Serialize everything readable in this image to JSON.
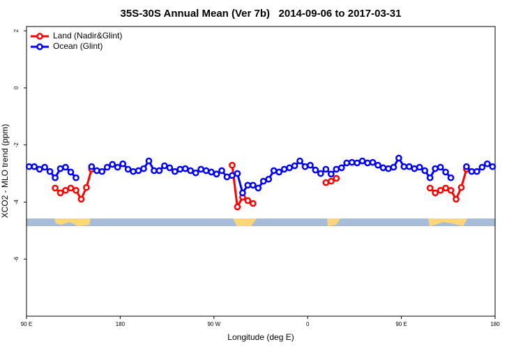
{
  "chart_data": {
    "type": "line",
    "title": "35S-30S Annual Mean (Ver 7b)   2014-09-06 to 2017-03-31",
    "x_label": "Longitude (deg E)",
    "y_label": "XCO2 - MLO trend (ppm)",
    "xlim": [
      90,
      540
    ],
    "ylim": [
      -8,
      2.15
    ],
    "xticks": [
      {
        "value": 90,
        "label": "90 E"
      },
      180,
      {
        "value": 270,
        "label": "90 W"
      },
      {
        "value": 360,
        "label": "0"
      },
      {
        "value": 450,
        "label": "90 E"
      },
      {
        "value": 540,
        "label": "180"
      }
    ],
    "yticks": [
      2,
      0,
      -2,
      -4,
      -6
    ],
    "legend": "top-left",
    "x": [
      92.5,
      97.5,
      102.5,
      107.5,
      112.5,
      117.5,
      122.5,
      127.5,
      132.5,
      137.5,
      142.5,
      147.5,
      152.5,
      157.5,
      162.5,
      167.5,
      172.5,
      177.5,
      182.5,
      187.5,
      192.5,
      197.5,
      202.5,
      207.5,
      212.5,
      217.5,
      222.5,
      227.5,
      232.5,
      237.5,
      242.5,
      247.5,
      252.5,
      257.5,
      262.5,
      267.5,
      272.5,
      277.5,
      282.5,
      287.5,
      292.5,
      297.5,
      302.5,
      307.5,
      312.5,
      317.5,
      322.5,
      327.5,
      332.5,
      337.5,
      342.5,
      347.5,
      352.5,
      357.5,
      362.5,
      367.5,
      372.5,
      377.5,
      382.5,
      387.5,
      392.5,
      397.5,
      402.5,
      407.5,
      412.5,
      417.5,
      422.5,
      427.5,
      432.5,
      437.5,
      442.5,
      447.5,
      452.5,
      457.5,
      462.5,
      467.5,
      472.5,
      477.5,
      482.5,
      487.5,
      492.5,
      497.5,
      502.5,
      507.5,
      512.5,
      517.5,
      522.5,
      527.5,
      532.5,
      537.5
    ],
    "series": [
      {
        "name": "Land (Nadir&Glint)",
        "color": "#ff0000",
        "values": [
          null,
          null,
          null,
          null,
          null,
          -3.51,
          -3.68,
          -3.59,
          -3.51,
          -3.59,
          -3.9,
          -3.49,
          -2.85,
          null,
          null,
          null,
          null,
          null,
          null,
          null,
          null,
          null,
          null,
          null,
          null,
          null,
          null,
          null,
          null,
          null,
          null,
          null,
          null,
          null,
          null,
          null,
          null,
          null,
          null,
          -2.71,
          -4.17,
          -3.83,
          -3.95,
          -4.05,
          null,
          null,
          null,
          null,
          null,
          null,
          null,
          null,
          null,
          null,
          null,
          null,
          null,
          -3.32,
          -3.27,
          -3.17,
          null,
          null,
          null,
          null,
          null,
          null,
          null,
          null,
          null,
          null,
          null,
          null,
          null,
          null,
          null,
          null,
          null,
          -3.51,
          -3.68,
          -3.59,
          -3.51,
          -3.59,
          -3.9,
          -3.49,
          -2.85,
          null,
          null,
          null,
          null,
          null
        ]
      },
      {
        "name": "Ocean (Glint)",
        "color": "#0000ff",
        "values": [
          -2.76,
          -2.76,
          -2.85,
          -2.78,
          -2.93,
          -3.15,
          -2.83,
          -2.78,
          -2.95,
          -3.15,
          null,
          null,
          -2.76,
          -2.9,
          -2.93,
          -2.78,
          -2.68,
          -2.78,
          -2.66,
          -2.85,
          -2.93,
          -2.9,
          -2.83,
          -2.56,
          -2.9,
          -2.9,
          -2.73,
          -2.8,
          -2.93,
          -2.85,
          -2.83,
          -2.9,
          -2.98,
          -2.85,
          -2.9,
          -2.95,
          -3.02,
          -2.9,
          -3.12,
          -3.07,
          -3.0,
          -3.68,
          -3.41,
          -3.41,
          -3.51,
          -3.27,
          -3.2,
          -2.9,
          -2.95,
          -2.85,
          -2.8,
          -2.73,
          -2.56,
          -2.76,
          -2.71,
          -2.88,
          -3.0,
          -2.85,
          -3.02,
          -2.85,
          -2.8,
          -2.63,
          -2.61,
          -2.63,
          -2.56,
          -2.63,
          -2.61,
          -2.71,
          -2.8,
          -2.83,
          -2.78,
          -2.46,
          -2.76,
          -2.76,
          -2.83,
          -2.78,
          -2.9,
          -3.15,
          -2.83,
          -2.78,
          -2.95,
          -3.15,
          null,
          null,
          -2.76,
          -2.93,
          -2.93,
          -2.78,
          -2.66,
          -2.76
        ]
      }
    ]
  }
}
